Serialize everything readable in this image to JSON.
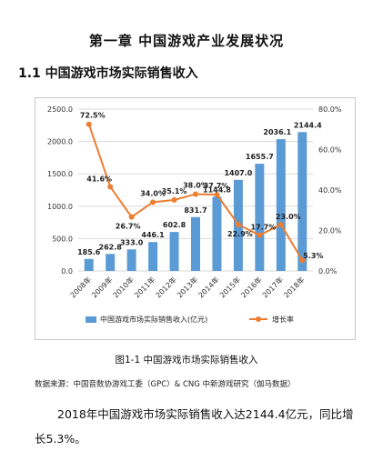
{
  "document": {
    "chapter_title": "第一章 中国游戏产业发展状况",
    "section_title": "1.1 中国游戏市场实际销售收入",
    "figure_caption": "图1-1 中国游戏市场实际销售收入",
    "source_note": "数据来源：中国音数协游戏工委（GPC）& CNG 中新游戏研究（伽马数据）",
    "paragraph": "2018年中国游戏市场实际销售收入达2144.4亿元，同比增长5.3%。"
  },
  "chart_data": {
    "type": "bar",
    "categories": [
      "2008年",
      "2009年",
      "2010年",
      "2011年",
      "2012年",
      "2013年",
      "2014年",
      "2015年",
      "2016年",
      "2017年",
      "2018年"
    ],
    "series": [
      {
        "name": "中国游戏市场实际销售收入(亿元)",
        "type": "bar",
        "axis": "left",
        "values": [
          185.6,
          262.8,
          333.0,
          446.1,
          602.8,
          831.7,
          1144.8,
          1407.0,
          1655.7,
          2036.1,
          2144.4
        ],
        "labels": [
          "185.6",
          "262.8",
          "333.0",
          "446.1",
          "602.8",
          "831.7",
          "1144.8",
          "1407.0",
          "1655.7",
          "2036.1",
          "2144.4"
        ]
      },
      {
        "name": "增长率",
        "type": "line",
        "axis": "right",
        "values": [
          72.5,
          41.6,
          26.7,
          34.0,
          35.1,
          38.0,
          37.7,
          22.9,
          17.7,
          23.0,
          5.3
        ],
        "labels": [
          "72.5%",
          "41.6%",
          "26.7%",
          "34.0%",
          "35.1%",
          "38.0%",
          "37.7%",
          "22.9%",
          "17.7%",
          "23.0%",
          "5.3%"
        ]
      }
    ],
    "ylim_left": [
      0,
      2500
    ],
    "ylim_right": [
      0,
      80
    ],
    "yticks_left": [
      "0.0",
      "500.0",
      "1000.0",
      "1500.0",
      "2000.0",
      "2500.0"
    ],
    "yticks_right": [
      "0.0%",
      "20.0%",
      "40.0%",
      "60.0%",
      "80.0%"
    ],
    "legend": "bottom",
    "colors": {
      "bar": "#5b9bd5",
      "line": "#ed7d31"
    }
  }
}
